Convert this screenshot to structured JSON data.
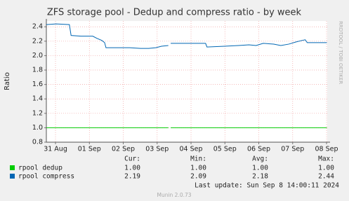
{
  "chart_data": {
    "type": "line",
    "title": "ZFS storage pool - Dedup and compress ratio - by week",
    "y_label": "Ratio",
    "side_label": "RRDTOOL / TOBI OETIKER",
    "x": [
      -0.27,
      0.02,
      0.41,
      0.46,
      0.75,
      1.1,
      1.22,
      1.37,
      1.45,
      1.49,
      1.88,
      2.19,
      2.51,
      2.75,
      2.96,
      3.13,
      3.33,
      3.35,
      3.4,
      3.95,
      4.43,
      4.47,
      4.99,
      5.4,
      5.71,
      5.92,
      6.13,
      6.44,
      6.65,
      6.89,
      7.1,
      7.27,
      7.37,
      7.43,
      8.01
    ],
    "series": [
      {
        "name": "rpool dedup",
        "color": "#00cc00",
        "values": [
          1.0,
          1.0,
          1.0,
          1.0,
          1.0,
          1.0,
          1.0,
          1.0,
          1.0,
          1.0,
          1.0,
          1.0,
          1.0,
          1.0,
          1.0,
          1.0,
          1.0,
          null,
          1.0,
          1.0,
          1.0,
          1.0,
          1.0,
          1.0,
          1.0,
          1.0,
          1.0,
          1.0,
          1.0,
          1.0,
          1.0,
          1.0,
          1.0,
          1.0,
          1.0
        ]
      },
      {
        "name": "rpool compress",
        "color": "#0066b3",
        "values": [
          2.43,
          2.44,
          2.43,
          2.28,
          2.27,
          2.27,
          2.24,
          2.21,
          2.18,
          2.11,
          2.11,
          2.11,
          2.1,
          2.1,
          2.11,
          2.13,
          2.14,
          null,
          2.17,
          2.17,
          2.17,
          2.12,
          2.13,
          2.14,
          2.15,
          2.14,
          2.17,
          2.16,
          2.14,
          2.16,
          2.19,
          2.21,
          2.22,
          2.18,
          2.18
        ]
      }
    ],
    "xlim": [
      -0.27,
      8.02
    ],
    "xticks": [
      {
        "value": 0,
        "label": "31 Aug"
      },
      {
        "value": 1,
        "label": "01 Sep"
      },
      {
        "value": 2,
        "label": "02 Sep"
      },
      {
        "value": 3,
        "label": "03 Sep"
      },
      {
        "value": 4,
        "label": "04 Sep"
      },
      {
        "value": 5,
        "label": "05 Sep"
      },
      {
        "value": 6,
        "label": "06 Sep"
      },
      {
        "value": 7,
        "label": "07 Sep"
      },
      {
        "value": 8,
        "label": "08 Sep"
      }
    ],
    "ylim": [
      0.8,
      2.48
    ],
    "yticks": [
      0.8,
      {
        "value": 1.0,
        "label": "1.0"
      },
      1.2,
      1.4,
      1.6,
      1.8,
      {
        "value": 2.0,
        "label": "2.0"
      },
      2.2,
      2.4
    ],
    "grid": true,
    "legend_table": {
      "columns": [
        "Cur:",
        "Min:",
        "Avg:",
        "Max:"
      ],
      "rows": [
        [
          "1.00",
          "1.00",
          "1.00",
          "1.00"
        ],
        [
          "2.19",
          "2.09",
          "2.18",
          "2.44"
        ]
      ]
    },
    "last_update": "Last update: Sun Sep  8 14:00:11 2024",
    "footer": "Munin 2.0.73"
  }
}
